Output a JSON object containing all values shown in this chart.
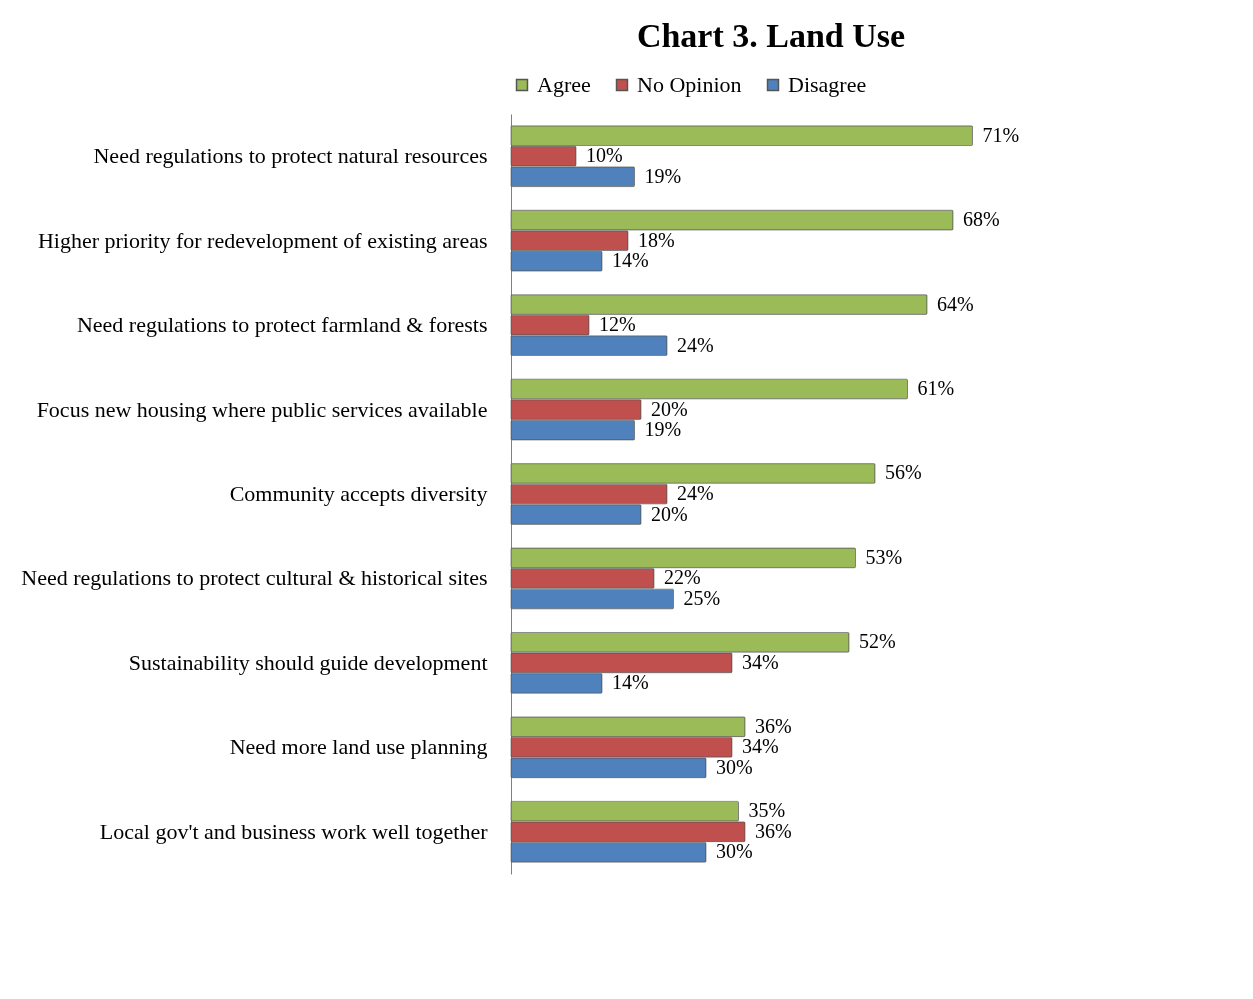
{
  "chart_data": {
    "type": "bar",
    "orientation": "horizontal",
    "title": "Chart 3. Land Use",
    "legend": "top",
    "categories": [
      "Need regulations to protect natural resources",
      "Higher priority for redevelopment of existing areas",
      "Need regulations to protect farmland & forests",
      "Focus new housing where public services available",
      "Community accepts diversity",
      "Need regulations to protect cultural & historical sites",
      "Sustainability should guide development",
      "Need more land use planning",
      "Local gov't and business work well together"
    ],
    "series": [
      {
        "name": "Agree",
        "color": "#9bbb59",
        "values": [
          71,
          68,
          64,
          61,
          56,
          53,
          52,
          36,
          35
        ],
        "value_labels": [
          "71%",
          "68%",
          "64%",
          "61%",
          "56%",
          "53%",
          "52%",
          "36%",
          "35%"
        ]
      },
      {
        "name": "No Opinion",
        "color": "#c0504d",
        "values": [
          10,
          18,
          12,
          20,
          24,
          22,
          34,
          34,
          36
        ],
        "value_labels": [
          "10%",
          "18%",
          "12%",
          "20%",
          "24%",
          "22%",
          "34%",
          "34%",
          "36%"
        ]
      },
      {
        "name": "Disagree",
        "color": "#4f81bd",
        "values": [
          19,
          14,
          24,
          19,
          20,
          25,
          14,
          30,
          30
        ],
        "value_labels": [
          "19%",
          "14%",
          "24%",
          "19%",
          "20%",
          "25%",
          "14%",
          "30%",
          "30%"
        ]
      }
    ]
  }
}
